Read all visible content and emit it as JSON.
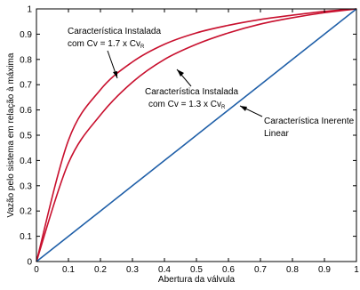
{
  "chart_data": {
    "type": "line",
    "title": "",
    "xlabel": "Abertura da válvula",
    "ylabel": "Vazão pelo sistema em relação à máxima",
    "xlim": [
      0,
      1
    ],
    "ylim": [
      0,
      1
    ],
    "xticks": [
      "0",
      "0.1",
      "0.2",
      "0.3",
      "0.4",
      "0.5",
      "0.6",
      "0.7",
      "0.8",
      "0.9",
      "1"
    ],
    "yticks": [
      "0",
      "0.1",
      "0.2",
      "0.3",
      "0.4",
      "0.5",
      "0.6",
      "0.7",
      "0.8",
      "0.9",
      "1"
    ],
    "grid": false,
    "x": [
      0,
      0.1,
      0.2,
      0.3,
      0.4,
      0.5,
      0.6,
      0.7,
      0.8,
      0.9,
      1
    ],
    "series": [
      {
        "color": "#c8102e",
        "values": [
          0,
          0.48,
          0.68,
          0.79,
          0.86,
          0.905,
          0.935,
          0.958,
          0.975,
          0.99,
          1
        ]
      },
      {
        "color": "#c8102e",
        "values": [
          0,
          0.39,
          0.58,
          0.71,
          0.8,
          0.86,
          0.905,
          0.94,
          0.965,
          0.985,
          1
        ]
      },
      {
        "color": "#1f5fa8",
        "values": [
          0,
          0.1,
          0.2,
          0.3,
          0.4,
          0.5,
          0.6,
          0.7,
          0.8,
          0.9,
          1
        ]
      }
    ],
    "annotations": [
      {
        "lines": [
          "Característica Instalada",
          "com Cv = 1.7 x Cv",
          "R"
        ]
      },
      {
        "lines": [
          "Característica Instalada",
          "com Cv = 1.3 x Cv",
          "R"
        ]
      },
      {
        "lines": [
          "Característica Inerente",
          "Linear"
        ]
      }
    ]
  }
}
